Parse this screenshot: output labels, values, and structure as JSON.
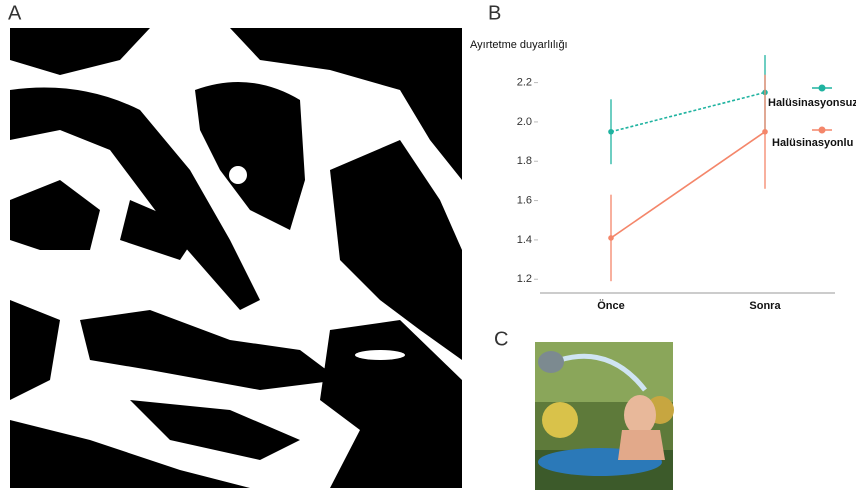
{
  "panels": {
    "a": "A",
    "b": "B",
    "c": "C"
  },
  "chart_data": {
    "type": "line",
    "y_label": "Ayırtetme duyarlılığı",
    "categories": [
      "Önce",
      "Sonra"
    ],
    "series": [
      {
        "name": "Halüsinasyonsuz",
        "color": "#1fb3a0",
        "dashed": true,
        "values": [
          1.95,
          2.15
        ],
        "errors": [
          0.165,
          0.19
        ]
      },
      {
        "name": "Halüsinasyonlu",
        "color": "#f4866a",
        "dashed": false,
        "values": [
          1.41,
          1.95
        ],
        "errors": [
          0.22,
          0.29
        ]
      }
    ],
    "ylim": [
      1.13,
      2.32
    ],
    "yticks": [
      1.2,
      1.4,
      1.6,
      1.8,
      {
        "value": 2,
        "label": "2.0"
      },
      2.2
    ],
    "grid": false,
    "legend": "right"
  }
}
